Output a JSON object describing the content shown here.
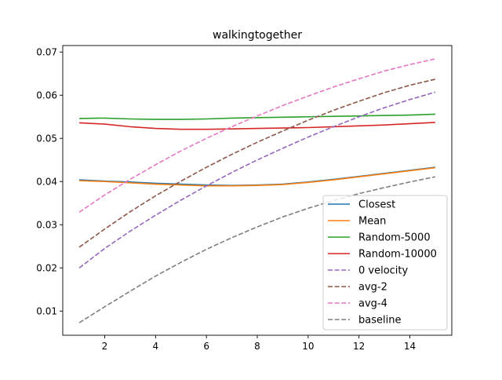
{
  "chart_data": {
    "type": "line",
    "title": "walkingtogether",
    "xlabel": "",
    "ylabel": "",
    "xlim": [
      0.35,
      15.65
    ],
    "ylim": [
      0.0044,
      0.0715
    ],
    "xticks": [
      2,
      4,
      6,
      8,
      10,
      12,
      14
    ],
    "yticks": [
      0.01,
      0.02,
      0.03,
      0.04,
      0.05,
      0.06,
      0.07
    ],
    "grid": false,
    "legend_position": "lower-right",
    "x": [
      1,
      2,
      3,
      4,
      5,
      6,
      7,
      8,
      9,
      10,
      11,
      12,
      13,
      14,
      15
    ],
    "series": [
      {
        "name": "Closest",
        "color": "#1f77b4",
        "dash": "solid",
        "values": [
          0.0404,
          0.0401,
          0.0399,
          0.0396,
          0.0394,
          0.0392,
          0.0391,
          0.0392,
          0.0394,
          0.0399,
          0.0405,
          0.0412,
          0.0419,
          0.0426,
          0.0433
        ]
      },
      {
        "name": "Mean",
        "color": "#ff7f0e",
        "dash": "solid",
        "values": [
          0.0402,
          0.04,
          0.0397,
          0.0394,
          0.0392,
          0.039,
          0.039,
          0.0391,
          0.0393,
          0.0398,
          0.0404,
          0.0411,
          0.0418,
          0.0425,
          0.0432
        ]
      },
      {
        "name": "Random-5000",
        "color": "#2ca02c",
        "dash": "solid",
        "values": [
          0.0546,
          0.0547,
          0.0545,
          0.0544,
          0.0544,
          0.0545,
          0.0547,
          0.0548,
          0.0549,
          0.055,
          0.0551,
          0.0552,
          0.0553,
          0.0554,
          0.0556
        ]
      },
      {
        "name": "Random-10000",
        "color": "#d62728",
        "dash": "solid",
        "values": [
          0.0536,
          0.0533,
          0.0527,
          0.0523,
          0.0521,
          0.0521,
          0.0522,
          0.0523,
          0.0524,
          0.0525,
          0.0527,
          0.0529,
          0.0531,
          0.0534,
          0.0537
        ]
      },
      {
        "name": "0 velocity",
        "color": "#9467bd",
        "dash": "dashed",
        "values": [
          0.02,
          0.0245,
          0.0285,
          0.0322,
          0.0357,
          0.039,
          0.0421,
          0.045,
          0.0477,
          0.0503,
          0.0527,
          0.055,
          0.0571,
          0.059,
          0.0607
        ]
      },
      {
        "name": "avg-2",
        "color": "#8c564b",
        "dash": "dashed",
        "values": [
          0.0248,
          0.029,
          0.033,
          0.0367,
          0.0401,
          0.0433,
          0.0463,
          0.0491,
          0.0517,
          0.0542,
          0.0565,
          0.0586,
          0.0606,
          0.0623,
          0.0637
        ]
      },
      {
        "name": "avg-4",
        "color": "#e377c2",
        "dash": "dashed",
        "values": [
          0.0329,
          0.0369,
          0.0405,
          0.0439,
          0.0471,
          0.05,
          0.0527,
          0.0552,
          0.0576,
          0.0598,
          0.0619,
          0.0638,
          0.0656,
          0.0671,
          0.0684
        ]
      },
      {
        "name": "baseline",
        "color": "#7f7f7f",
        "dash": "dashed",
        "values": [
          0.0073,
          0.011,
          0.0146,
          0.0181,
          0.0213,
          0.0243,
          0.027,
          0.0295,
          0.0318,
          0.0338,
          0.0356,
          0.0372,
          0.0386,
          0.0399,
          0.0411
        ]
      }
    ]
  }
}
